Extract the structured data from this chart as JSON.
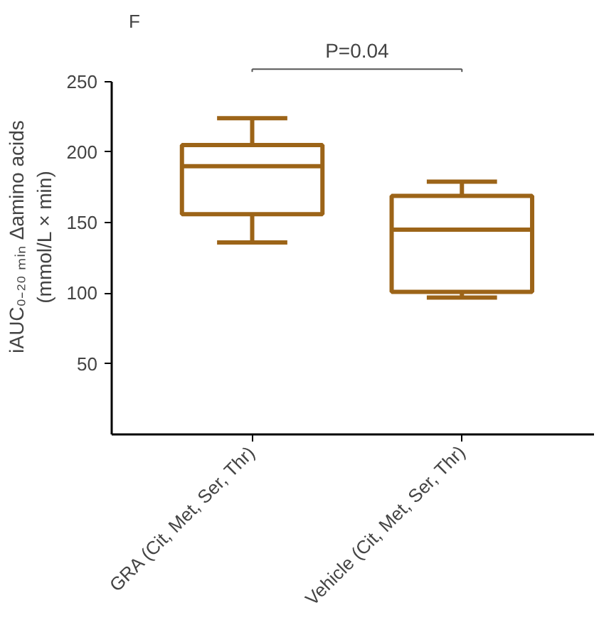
{
  "chart_data": {
    "type": "box",
    "title": "F",
    "ylabel": "iAUC₀₋₂₀ ₘᵢₙ Δamino acids\n(mmol/L × min)",
    "categories": [
      "GRA (Cit, Met, Ser, Thr)",
      "Vehicle (Cit, Met, Ser, Thr)"
    ],
    "boxes": [
      {
        "low": 136,
        "q1": 156,
        "median": 190,
        "q3": 205,
        "high": 224
      },
      {
        "low": 97,
        "q1": 101,
        "median": 145,
        "q3": 169,
        "high": 179
      }
    ],
    "color": "#9c6418",
    "ylim": [
      0,
      250
    ],
    "yticks": [
      50,
      100,
      150,
      200,
      250
    ],
    "grid": false,
    "annotations": [
      "P=0.04"
    ]
  }
}
